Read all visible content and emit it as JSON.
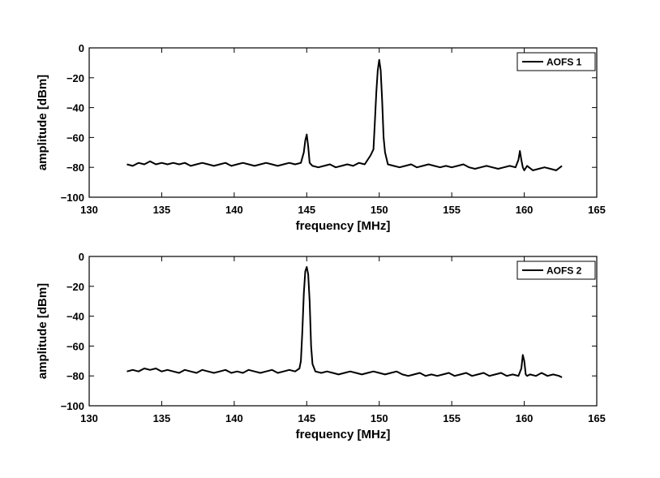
{
  "chart_data": [
    {
      "type": "line",
      "xlabel": "frequency [MHz]",
      "ylabel": "amplitude [dBm]",
      "xlim": [
        130,
        165
      ],
      "ylim": [
        -100,
        0
      ],
      "xticks": [
        "130",
        "135",
        "140",
        "145",
        "150",
        "155",
        "160",
        "165"
      ],
      "yticks": [
        "0",
        "−20",
        "−40",
        "−60",
        "−80",
        "−100"
      ],
      "grid": false,
      "legend_position": "top-right",
      "series": [
        {
          "name": "AOFS 1",
          "color": "#000000",
          "x": [
            132.6,
            133.0,
            133.4,
            133.8,
            134.2,
            134.6,
            135.0,
            135.4,
            135.8,
            136.2,
            136.6,
            137.0,
            137.4,
            137.8,
            138.2,
            138.6,
            139.0,
            139.4,
            139.8,
            140.2,
            140.6,
            141.0,
            141.4,
            141.8,
            142.2,
            142.6,
            143.0,
            143.4,
            143.8,
            144.2,
            144.6,
            144.8,
            144.9,
            145.0,
            145.1,
            145.2,
            145.4,
            145.8,
            146.2,
            146.6,
            147.0,
            147.4,
            147.8,
            148.2,
            148.6,
            149.0,
            149.4,
            149.6,
            149.7,
            149.8,
            149.9,
            150.0,
            150.1,
            150.2,
            150.3,
            150.4,
            150.6,
            151.0,
            151.4,
            151.8,
            152.2,
            152.6,
            153.0,
            153.4,
            153.8,
            154.2,
            154.6,
            155.0,
            155.4,
            155.8,
            156.2,
            156.6,
            157.0,
            157.4,
            157.8,
            158.2,
            158.6,
            159.0,
            159.4,
            159.6,
            159.7,
            159.8,
            159.9,
            160.0,
            160.2,
            160.6,
            161.0,
            161.4,
            161.8,
            162.2,
            162.6
          ],
          "y": [
            -78,
            -79,
            -77,
            -78,
            -76,
            -78,
            -77,
            -78,
            -77,
            -78,
            -77,
            -79,
            -78,
            -77,
            -78,
            -79,
            -78,
            -77,
            -79,
            -78,
            -77,
            -78,
            -79,
            -78,
            -77,
            -78,
            -79,
            -78,
            -77,
            -78,
            -77,
            -70,
            -62,
            -58,
            -66,
            -77,
            -79,
            -80,
            -79,
            -78,
            -80,
            -79,
            -78,
            -79,
            -77,
            -78,
            -72,
            -68,
            -50,
            -30,
            -15,
            -8,
            -15,
            -35,
            -60,
            -70,
            -78,
            -79,
            -80,
            -79,
            -78,
            -80,
            -79,
            -78,
            -79,
            -80,
            -79,
            -80,
            -79,
            -78,
            -80,
            -81,
            -80,
            -79,
            -80,
            -81,
            -80,
            -79,
            -80,
            -75,
            -69,
            -75,
            -80,
            -82,
            -79,
            -82,
            -81,
            -80,
            -81,
            -82,
            -79
          ]
        }
      ],
      "legend": {
        "label": "AOFS 1"
      }
    },
    {
      "type": "line",
      "xlabel": "frequency [MHz]",
      "ylabel": "amplitude [dBm]",
      "xlim": [
        130,
        165
      ],
      "ylim": [
        -100,
        0
      ],
      "xticks": [
        "130",
        "135",
        "140",
        "145",
        "150",
        "155",
        "160",
        "165"
      ],
      "yticks": [
        "0",
        "−20",
        "−40",
        "−60",
        "−80",
        "−100"
      ],
      "grid": false,
      "legend_position": "top-right",
      "series": [
        {
          "name": "AOFS 2",
          "color": "#000000",
          "x": [
            132.6,
            133.0,
            133.4,
            133.8,
            134.2,
            134.6,
            135.0,
            135.4,
            135.8,
            136.2,
            136.6,
            137.0,
            137.4,
            137.8,
            138.2,
            138.6,
            139.0,
            139.4,
            139.8,
            140.2,
            140.6,
            141.0,
            141.4,
            141.8,
            142.2,
            142.6,
            143.0,
            143.4,
            143.8,
            144.2,
            144.5,
            144.6,
            144.7,
            144.8,
            144.9,
            145.0,
            145.1,
            145.2,
            145.3,
            145.4,
            145.6,
            146.0,
            146.4,
            146.8,
            147.2,
            147.6,
            148.0,
            148.4,
            148.8,
            149.2,
            149.6,
            150.0,
            150.4,
            150.8,
            151.2,
            151.6,
            152.0,
            152.4,
            152.8,
            153.2,
            153.6,
            154.0,
            154.4,
            154.8,
            155.2,
            155.6,
            156.0,
            156.4,
            156.8,
            157.2,
            157.6,
            158.0,
            158.4,
            158.8,
            159.2,
            159.6,
            159.8,
            159.9,
            160.0,
            160.1,
            160.2,
            160.4,
            160.8,
            161.2,
            161.6,
            162.0,
            162.4,
            162.6
          ],
          "y": [
            -77,
            -76,
            -77,
            -75,
            -76,
            -75,
            -77,
            -76,
            -77,
            -78,
            -76,
            -77,
            -78,
            -76,
            -77,
            -78,
            -77,
            -76,
            -78,
            -77,
            -78,
            -76,
            -77,
            -78,
            -77,
            -76,
            -78,
            -77,
            -76,
            -77,
            -75,
            -70,
            -50,
            -25,
            -10,
            -7,
            -12,
            -30,
            -60,
            -72,
            -77,
            -78,
            -77,
            -78,
            -79,
            -78,
            -77,
            -78,
            -79,
            -78,
            -77,
            -78,
            -79,
            -78,
            -77,
            -79,
            -80,
            -79,
            -78,
            -80,
            -79,
            -80,
            -79,
            -78,
            -80,
            -79,
            -78,
            -80,
            -79,
            -78,
            -80,
            -79,
            -78,
            -80,
            -79,
            -80,
            -75,
            -66,
            -70,
            -79,
            -80,
            -79,
            -80,
            -78,
            -80,
            -79,
            -80,
            -81
          ]
        }
      ],
      "legend": {
        "label": "AOFS 2"
      }
    }
  ]
}
